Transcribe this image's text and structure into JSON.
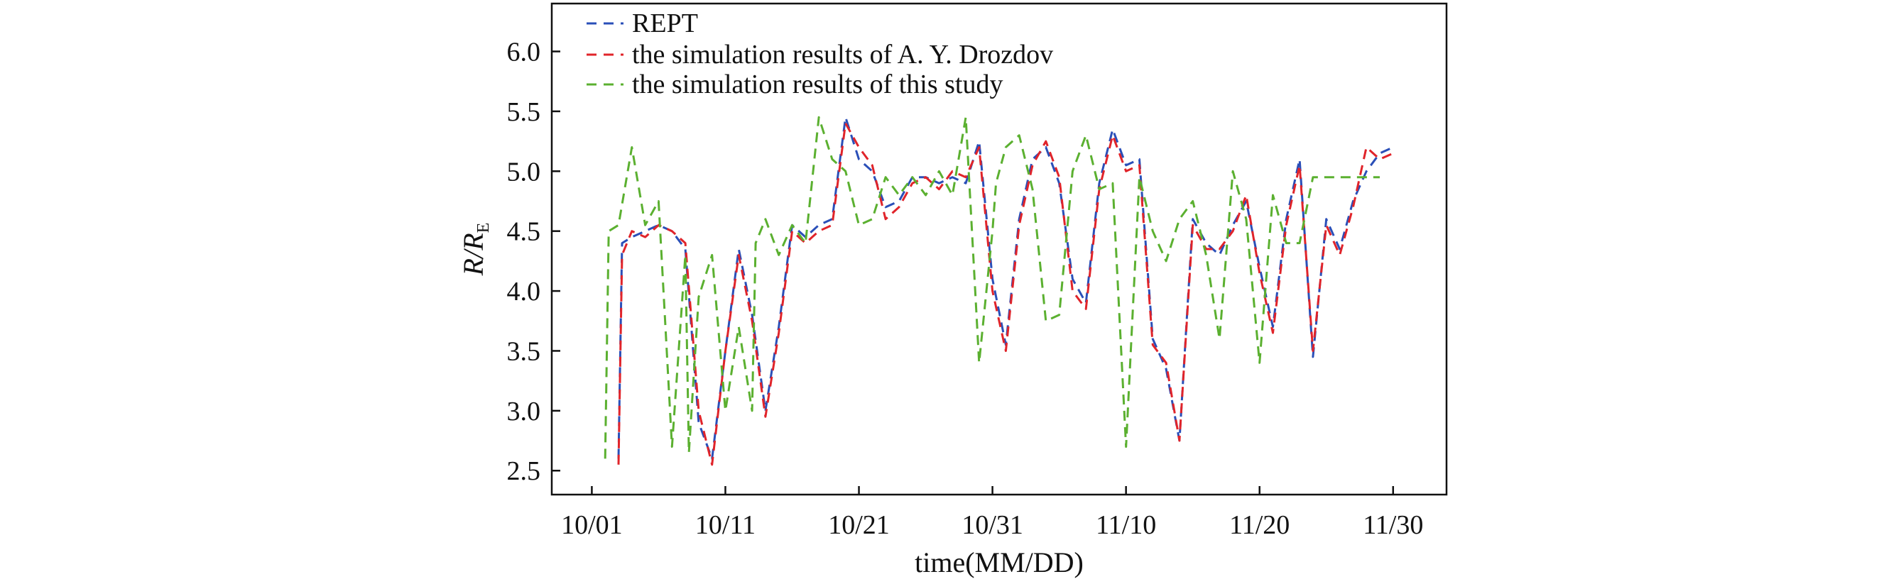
{
  "chart_data": {
    "type": "line",
    "xlabel": "time(MM/DD)",
    "ylabel_main": "R/R",
    "ylabel_sub": "E",
    "ylim": [
      2.3,
      6.4
    ],
    "xlim": [
      "2023-09-28",
      "2023-12-04"
    ],
    "x_ticks": [
      {
        "date": "2023-10-01",
        "label": "10/01"
      },
      {
        "date": "2023-10-11",
        "label": "10/11"
      },
      {
        "date": "2023-10-21",
        "label": "10/21"
      },
      {
        "date": "2023-10-31",
        "label": "10/31"
      },
      {
        "date": "2023-11-10",
        "label": "11/10"
      },
      {
        "date": "2023-11-20",
        "label": "11/20"
      },
      {
        "date": "2023-11-30",
        "label": "11/30"
      }
    ],
    "y_ticks": [
      "2.5",
      "3.0",
      "3.5",
      "4.0",
      "4.5",
      "5.0",
      "5.5",
      "6.0"
    ],
    "legend_position": "top-left",
    "grid": false,
    "series": [
      {
        "name": "REPT",
        "color": "#2a4fb8",
        "x": [
          "2023-10-03",
          "2023-10-03",
          "2023-10-04",
          "2023-10-05",
          "2023-10-06",
          "2023-10-07",
          "2023-10-08",
          "2023-10-09",
          "2023-10-10",
          "2023-10-11",
          "2023-10-12",
          "2023-10-13",
          "2023-10-14",
          "2023-10-15",
          "2023-10-16",
          "2023-10-17",
          "2023-10-18",
          "2023-10-19",
          "2023-10-20",
          "2023-10-21",
          "2023-10-22",
          "2023-10-23",
          "2023-10-24",
          "2023-10-25",
          "2023-10-26",
          "2023-10-27",
          "2023-10-28",
          "2023-10-29",
          "2023-10-30",
          "2023-10-31",
          "2023-11-01",
          "2023-11-02",
          "2023-11-03",
          "2023-11-04",
          "2023-11-05",
          "2023-11-06",
          "2023-11-07",
          "2023-11-08",
          "2023-11-09",
          "2023-11-10",
          "2023-11-11",
          "2023-11-12",
          "2023-11-13",
          "2023-11-14",
          "2023-11-15",
          "2023-11-16",
          "2023-11-17",
          "2023-11-18",
          "2023-11-19",
          "2023-11-20",
          "2023-11-21",
          "2023-11-22",
          "2023-11-23",
          "2023-11-24",
          "2023-11-25",
          "2023-11-26",
          "2023-11-27",
          "2023-11-28",
          "2023-11-29",
          "2023-11-30"
        ],
        "y": [
          2.6,
          4.4,
          4.45,
          4.5,
          4.55,
          4.5,
          4.35,
          2.9,
          2.6,
          3.5,
          4.35,
          3.8,
          3.0,
          3.7,
          4.55,
          4.45,
          4.55,
          4.6,
          5.45,
          5.1,
          5.0,
          4.7,
          4.75,
          4.95,
          4.95,
          4.9,
          4.95,
          4.9,
          5.25,
          4.1,
          3.55,
          4.6,
          5.1,
          5.2,
          4.9,
          4.1,
          3.9,
          4.9,
          5.35,
          5.05,
          5.1,
          3.6,
          3.35,
          2.75,
          4.6,
          4.4,
          4.3,
          4.55,
          4.75,
          4.2,
          3.7,
          4.6,
          5.1,
          3.45,
          4.6,
          4.35,
          4.75,
          5.0,
          5.15,
          5.2
        ]
      },
      {
        "name": "the simulation results of A. Y. Drozdov",
        "color": "#e0242a",
        "x": [
          "2023-10-03",
          "2023-10-03",
          "2023-10-04",
          "2023-10-05",
          "2023-10-06",
          "2023-10-07",
          "2023-10-08",
          "2023-10-09",
          "2023-10-10",
          "2023-10-11",
          "2023-10-12",
          "2023-10-13",
          "2023-10-14",
          "2023-10-15",
          "2023-10-16",
          "2023-10-17",
          "2023-10-18",
          "2023-10-19",
          "2023-10-20",
          "2023-10-21",
          "2023-10-22",
          "2023-10-23",
          "2023-10-24",
          "2023-10-25",
          "2023-10-26",
          "2023-10-27",
          "2023-10-28",
          "2023-10-29",
          "2023-10-30",
          "2023-10-31",
          "2023-11-01",
          "2023-11-02",
          "2023-11-03",
          "2023-11-04",
          "2023-11-05",
          "2023-11-06",
          "2023-11-07",
          "2023-11-08",
          "2023-11-09",
          "2023-11-10",
          "2023-11-11",
          "2023-11-12",
          "2023-11-13",
          "2023-11-14",
          "2023-11-15",
          "2023-11-16",
          "2023-11-17",
          "2023-11-18",
          "2023-11-19",
          "2023-11-20",
          "2023-11-21",
          "2023-11-22",
          "2023-11-23",
          "2023-11-24",
          "2023-11-25",
          "2023-11-26",
          "2023-11-27",
          "2023-11-28",
          "2023-11-29",
          "2023-11-30"
        ],
        "y": [
          2.55,
          4.3,
          4.5,
          4.45,
          4.55,
          4.5,
          4.4,
          3.0,
          2.55,
          3.5,
          4.3,
          3.75,
          2.95,
          3.65,
          4.5,
          4.4,
          4.5,
          4.55,
          5.4,
          5.2,
          5.05,
          4.6,
          4.7,
          4.9,
          4.95,
          4.85,
          5.0,
          4.95,
          5.2,
          4.0,
          3.5,
          4.55,
          5.05,
          5.25,
          4.95,
          4.0,
          3.85,
          4.85,
          5.3,
          5.0,
          5.05,
          3.55,
          3.4,
          2.75,
          4.55,
          4.35,
          4.35,
          4.5,
          4.8,
          4.15,
          3.65,
          4.55,
          5.05,
          3.5,
          4.55,
          4.3,
          4.7,
          5.2,
          5.1,
          5.15
        ]
      },
      {
        "name": "the simulation results of this study",
        "color": "#5bb030",
        "x": [
          "2023-10-02",
          "2023-10-02",
          "2023-10-03",
          "2023-10-04",
          "2023-10-05",
          "2023-10-06",
          "2023-10-07",
          "2023-10-08",
          "2023-10-08",
          "2023-10-09",
          "2023-10-10",
          "2023-10-11",
          "2023-10-12",
          "2023-10-13",
          "2023-10-13",
          "2023-10-14",
          "2023-10-15",
          "2023-10-16",
          "2023-10-17",
          "2023-10-18",
          "2023-10-19",
          "2023-10-20",
          "2023-10-21",
          "2023-10-22",
          "2023-10-23",
          "2023-10-24",
          "2023-10-25",
          "2023-10-26",
          "2023-10-27",
          "2023-10-28",
          "2023-10-29",
          "2023-10-30",
          "2023-10-31",
          "2023-10-31",
          "2023-11-01",
          "2023-11-02",
          "2023-11-03",
          "2023-11-04",
          "2023-11-05",
          "2023-11-06",
          "2023-11-07",
          "2023-11-08",
          "2023-11-09",
          "2023-11-10",
          "2023-11-11",
          "2023-11-12",
          "2023-11-13",
          "2023-11-14",
          "2023-11-15",
          "2023-11-16",
          "2023-11-17",
          "2023-11-18",
          "2023-11-19",
          "2023-11-20",
          "2023-11-21",
          "2023-11-22",
          "2023-11-23",
          "2023-11-24",
          "2023-11-25",
          "2023-11-26",
          "2023-11-27",
          "2023-11-28",
          "2023-11-29"
        ],
        "y": [
          2.6,
          4.5,
          4.55,
          5.2,
          4.55,
          4.75,
          2.7,
          4.3,
          2.65,
          3.95,
          4.3,
          3.0,
          3.7,
          3.0,
          4.4,
          4.6,
          4.3,
          4.55,
          4.4,
          5.45,
          5.1,
          5.0,
          4.55,
          4.6,
          4.95,
          4.8,
          4.95,
          4.8,
          5.0,
          4.8,
          5.45,
          3.4,
          4.5,
          4.9,
          5.2,
          5.3,
          4.85,
          3.75,
          3.8,
          5.0,
          5.3,
          4.85,
          4.9,
          2.7,
          4.95,
          4.5,
          4.25,
          4.6,
          4.75,
          4.3,
          3.6,
          5.0,
          4.6,
          3.4,
          4.8,
          4.4,
          4.4,
          4.95,
          4.95,
          4.95,
          4.95,
          4.95,
          4.95
        ]
      }
    ]
  }
}
